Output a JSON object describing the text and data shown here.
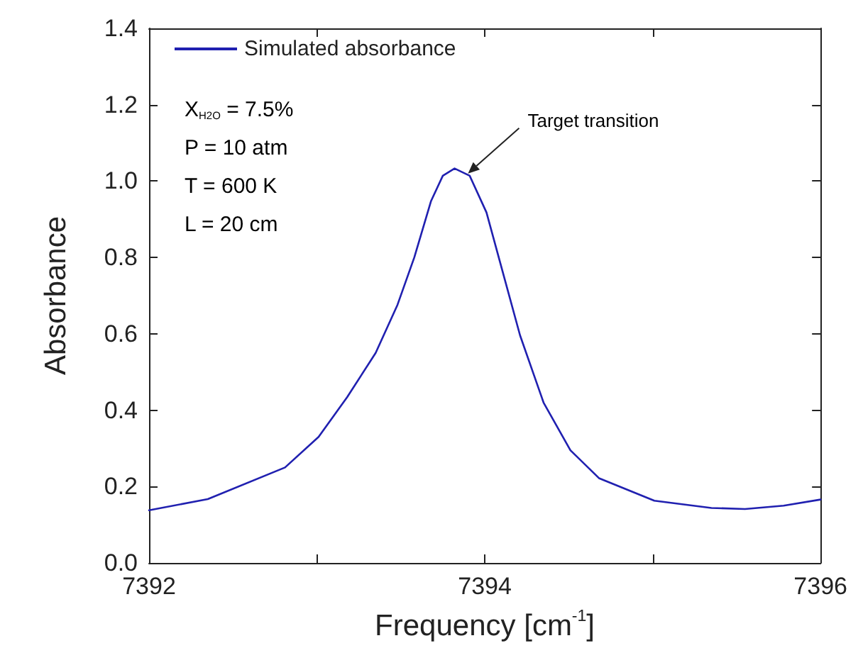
{
  "chart_data": {
    "type": "line",
    "xlabel": "Frequency [cm$^{-1}$]",
    "ylabel": "Absorbance",
    "x": [
      7392,
      7392.35,
      7392.81,
      7393.01,
      7393.18,
      7393.35,
      7393.48,
      7393.58,
      7393.68,
      7393.75,
      7393.82,
      7393.91,
      7394.01,
      7394.11,
      7394.21,
      7394.35,
      7394.51,
      7394.68,
      7395.01,
      7395.35,
      7395.55,
      7395.78,
      7396
    ],
    "series": [
      {
        "name": "Simulated absorbance",
        "color": "#2020b0",
        "values": [
          0.138,
          0.167,
          0.25,
          0.33,
          0.434,
          0.55,
          0.676,
          0.8,
          0.948,
          1.014,
          1.033,
          1.014,
          0.918,
          0.757,
          0.596,
          0.42,
          0.295,
          0.222,
          0.163,
          0.144,
          0.141,
          0.15,
          0.166
        ]
      }
    ],
    "xlim": [
      7392,
      7396
    ],
    "xticks": [
      7392,
      {
        "value": 7393,
        "label": null
      },
      7394,
      {
        "value": 7395,
        "label": null
      },
      7396
    ],
    "ylim": [
      0,
      1.4
    ],
    "yticks": [
      {
        "value": 0,
        "label": "0.0"
      },
      {
        "value": 0.2,
        "label": "0.2"
      },
      {
        "value": 0.4,
        "label": "0.4"
      },
      {
        "value": 0.6,
        "label": "0.6"
      },
      {
        "value": 0.8,
        "label": "0.8"
      },
      {
        "value": 1.0,
        "label": "1.0"
      },
      {
        "value": 1.2,
        "label": "1.2"
      },
      {
        "value": 1.4,
        "label": "1.4"
      }
    ],
    "annotations": [
      "X$_{H2O}$ = 7.5%",
      "P = 10 atm",
      "T = 600 K",
      "L = 20 cm",
      {
        "text": "Target transition",
        "x": 7393.9,
        "y": 1.02
      }
    ],
    "legend": "top left",
    "grid": false,
    "marker": "none",
    "line_style": "solid"
  }
}
